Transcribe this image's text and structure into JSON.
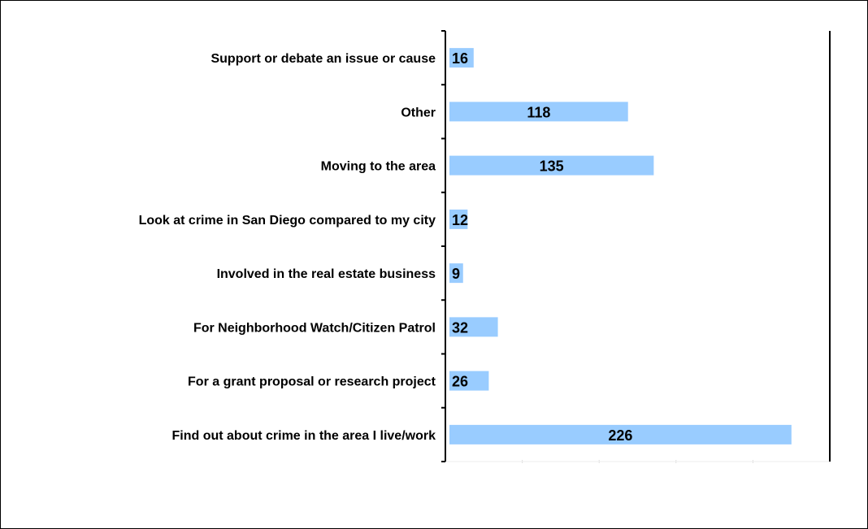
{
  "chart_data": {
    "type": "bar",
    "orientation": "horizontal",
    "categories": [
      "Find out about crime in the area I live/work",
      "For a grant proposal or research project",
      "For Neighborhood Watch/Citizen Patrol",
      "Involved in the real estate business",
      "Look at crime in San Diego compared to my city",
      "Moving to the area",
      "Other",
      "Support or debate an issue or cause"
    ],
    "values": [
      226,
      26,
      32,
      9,
      12,
      135,
      118,
      16
    ],
    "xlim": [
      0,
      250
    ],
    "grid": false,
    "legend": "none",
    "data_labels": true,
    "colors": {
      "bar": "#99ccff",
      "axis": "#000000",
      "text": "#000000"
    }
  }
}
